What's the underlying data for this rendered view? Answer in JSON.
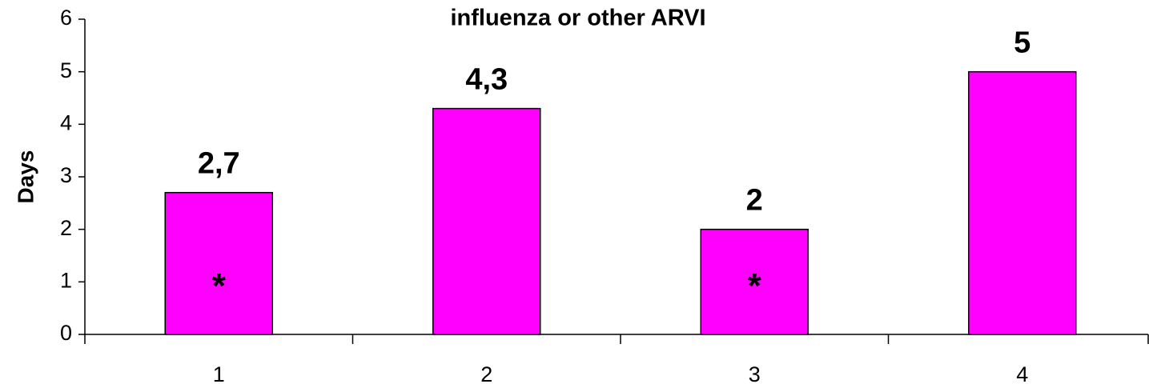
{
  "chart_data": {
    "type": "bar",
    "title": "influenza or other ARVI",
    "y_label": "Days",
    "categories": [
      "1",
      "2",
      "3",
      "4"
    ],
    "values": [
      2.7,
      4.3,
      2,
      5
    ],
    "value_labels": [
      "2,7",
      "4,3",
      "2",
      "5"
    ],
    "bar_annotations": [
      "*",
      null,
      "*",
      null
    ],
    "color": "#ff00ff",
    "ylim": [
      0,
      6
    ],
    "yticks": [
      0,
      1,
      2,
      3,
      4,
      5,
      6
    ],
    "grid": false
  }
}
